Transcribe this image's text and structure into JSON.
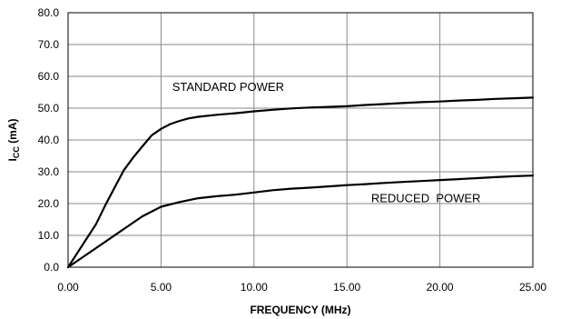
{
  "chart_data": {
    "type": "line",
    "xlabel": "FREQUENCY (MHz)",
    "ylabel_main": "I",
    "ylabel_sub": "CC",
    "ylabel_unit": " (mA)",
    "xlim": [
      0,
      25
    ],
    "ylim": [
      0,
      80
    ],
    "x_ticks": [
      "0.00",
      "5.00",
      "10.00",
      "15.00",
      "20.00",
      "25.00"
    ],
    "y_ticks": [
      "0.0",
      "10.0",
      "20.0",
      "30.0",
      "40.0",
      "50.0",
      "60.0",
      "70.0",
      "80.0"
    ],
    "grid": true,
    "series": [
      {
        "name": "STANDARD POWER",
        "x": [
          0,
          0.5,
          1,
          1.5,
          2,
          2.5,
          3,
          3.5,
          4,
          4.5,
          5,
          5.5,
          6,
          6.5,
          7,
          8,
          9,
          10,
          11,
          12,
          13,
          14,
          15,
          16,
          17,
          18,
          19,
          20,
          21,
          22,
          23,
          24,
          25
        ],
        "y": [
          0,
          4.5,
          9,
          13.5,
          19.5,
          25,
          30.5,
          34.5,
          38,
          41.5,
          43.5,
          45,
          46,
          46.8,
          47.3,
          47.9,
          48.4,
          49,
          49.5,
          49.9,
          50.2,
          50.4,
          50.6,
          51,
          51.3,
          51.6,
          51.9,
          52.1,
          52.4,
          52.6,
          52.9,
          53.1,
          53.3
        ]
      },
      {
        "name": "REDUCED POWER",
        "x": [
          0,
          1,
          2,
          3,
          4,
          5,
          6,
          7,
          8,
          9,
          10,
          11,
          12,
          13,
          14,
          15,
          16,
          17,
          18,
          19,
          20,
          21,
          22,
          23,
          24,
          25
        ],
        "y": [
          0,
          4,
          8,
          12,
          16,
          19,
          20.5,
          21.7,
          22.3,
          22.8,
          23.5,
          24.2,
          24.7,
          25,
          25.4,
          25.8,
          26.1,
          26.5,
          26.8,
          27.1,
          27.4,
          27.7,
          28,
          28.3,
          28.6,
          28.8
        ]
      }
    ],
    "annotations": [
      {
        "text": "STANDARD POWER",
        "x": 5.6,
        "y": 55.5
      },
      {
        "text": "REDUCED  POWER",
        "x": 16.3,
        "y": 20.5
      }
    ]
  }
}
